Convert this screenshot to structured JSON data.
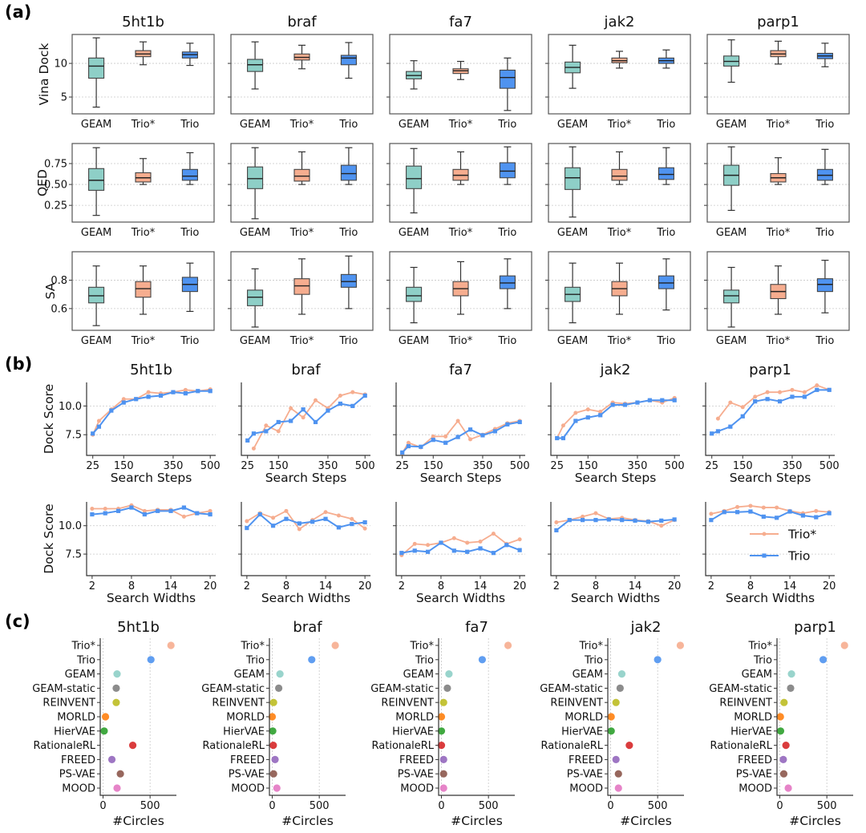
{
  "section_labels": [
    "(a)",
    "(b)",
    "(c)"
  ],
  "targets": [
    "5ht1b",
    "braf",
    "fa7",
    "jak2",
    "parp1"
  ],
  "colors": {
    "GEAM": "#8ecfc7",
    "Trio*": "#f6ad8f",
    "Trio": "#4f93f0",
    "edge": "#333333"
  },
  "chart_data": [
    {
      "section": "(a)",
      "type": "box",
      "methods": [
        "GEAM",
        "Trio*",
        "Trio"
      ],
      "box_format": "[min, q1, median, q3, max]",
      "metrics": [
        {
          "ylabel": "Vina Dock",
          "yticks": [
            5,
            10
          ],
          "tick_labels": [
            "5",
            "10"
          ],
          "ylim": [
            2.5,
            14.3
          ],
          "data": {
            "5ht1b": [
              [
                3.5,
                7.8,
                9.6,
                10.8,
                13.8
              ],
              [
                9.8,
                11.0,
                11.4,
                11.9,
                13.2
              ],
              [
                9.7,
                10.8,
                11.3,
                11.7,
                13.0
              ]
            ],
            "braf": [
              [
                6.2,
                8.8,
                9.8,
                10.6,
                13.2
              ],
              [
                9.2,
                10.5,
                10.9,
                11.4,
                12.7
              ],
              [
                7.8,
                9.8,
                10.8,
                11.2,
                13.1
              ]
            ],
            "fa7": [
              [
                6.2,
                7.7,
                8.2,
                8.8,
                10.4
              ],
              [
                7.6,
                8.5,
                8.9,
                9.2,
                10.3
              ],
              [
                3.0,
                6.3,
                7.9,
                9.0,
                10.8
              ]
            ],
            "jak2": [
              [
                6.3,
                8.6,
                9.4,
                10.2,
                12.7
              ],
              [
                9.3,
                10.1,
                10.4,
                10.8,
                11.8
              ],
              [
                9.3,
                10.0,
                10.4,
                10.8,
                12.0
              ]
            ],
            "parp1": [
              [
                7.2,
                9.6,
                10.3,
                11.1,
                13.5
              ],
              [
                9.9,
                11.0,
                11.4,
                11.9,
                13.3
              ],
              [
                9.5,
                10.7,
                11.1,
                11.5,
                13.0
              ]
            ]
          }
        },
        {
          "ylabel": "QED",
          "yticks": [
            0.25,
            0.5,
            0.75
          ],
          "tick_labels": [
            "0.25",
            "0.50",
            "0.75"
          ],
          "ylim": [
            0.05,
            0.99
          ],
          "data": {
            "5ht1b": [
              [
                0.13,
                0.43,
                0.55,
                0.69,
                0.94
              ],
              [
                0.5,
                0.53,
                0.58,
                0.64,
                0.81
              ],
              [
                0.5,
                0.55,
                0.6,
                0.68,
                0.88
              ]
            ],
            "braf": [
              [
                0.09,
                0.45,
                0.57,
                0.71,
                0.94
              ],
              [
                0.5,
                0.54,
                0.6,
                0.68,
                0.89
              ],
              [
                0.5,
                0.55,
                0.63,
                0.73,
                0.94
              ]
            ],
            "fa7": [
              [
                0.16,
                0.45,
                0.57,
                0.72,
                0.93
              ],
              [
                0.5,
                0.55,
                0.61,
                0.68,
                0.89
              ],
              [
                0.5,
                0.58,
                0.66,
                0.76,
                0.95
              ]
            ],
            "jak2": [
              [
                0.11,
                0.44,
                0.58,
                0.7,
                0.95
              ],
              [
                0.5,
                0.55,
                0.6,
                0.68,
                0.89
              ],
              [
                0.5,
                0.56,
                0.62,
                0.7,
                0.94
              ]
            ],
            "parp1": [
              [
                0.19,
                0.49,
                0.61,
                0.73,
                0.95
              ],
              [
                0.5,
                0.53,
                0.58,
                0.63,
                0.82
              ],
              [
                0.5,
                0.55,
                0.61,
                0.68,
                0.92
              ]
            ]
          }
        },
        {
          "ylabel": "SA",
          "yticks": [
            0.6,
            0.8
          ],
          "tick_labels": [
            "0.6",
            "0.8"
          ],
          "ylim": [
            0.447,
            1.0
          ],
          "data": {
            "5ht1b": [
              [
                0.48,
                0.64,
                0.69,
                0.75,
                0.9
              ],
              [
                0.56,
                0.68,
                0.74,
                0.79,
                0.9
              ],
              [
                0.58,
                0.72,
                0.77,
                0.82,
                0.92
              ]
            ],
            "braf": [
              [
                0.47,
                0.62,
                0.68,
                0.73,
                0.88
              ],
              [
                0.56,
                0.7,
                0.76,
                0.81,
                0.95
              ],
              [
                0.6,
                0.75,
                0.79,
                0.84,
                0.97
              ]
            ],
            "fa7": [
              [
                0.5,
                0.65,
                0.69,
                0.75,
                0.89
              ],
              [
                0.56,
                0.69,
                0.74,
                0.79,
                0.93
              ],
              [
                0.6,
                0.74,
                0.78,
                0.83,
                0.95
              ]
            ],
            "jak2": [
              [
                0.5,
                0.65,
                0.7,
                0.75,
                0.92
              ],
              [
                0.56,
                0.69,
                0.74,
                0.79,
                0.92
              ],
              [
                0.59,
                0.74,
                0.78,
                0.83,
                0.95
              ]
            ],
            "parp1": [
              [
                0.47,
                0.64,
                0.69,
                0.73,
                0.89
              ],
              [
                0.56,
                0.67,
                0.72,
                0.77,
                0.9
              ],
              [
                0.57,
                0.72,
                0.77,
                0.81,
                0.94
              ]
            ]
          }
        }
      ]
    },
    {
      "section": "(b)",
      "type": "line",
      "ylabel": "Dock Score",
      "yticks": [
        7.5,
        10.0
      ],
      "tick_labels": [
        "7.5",
        "10.0"
      ],
      "legend": {
        "entries": [
          "Trio*",
          "Trio"
        ],
        "placement": "lower-right of parp1 Search Widths panel"
      },
      "rows": [
        {
          "xlabel": "Search Steps",
          "x": [
            25,
            50,
            100,
            150,
            200,
            250,
            300,
            350,
            400,
            450,
            500
          ],
          "xticks": [
            25,
            150,
            350,
            500
          ],
          "xtick_labels": [
            "25",
            "150",
            "350",
            "500"
          ],
          "xlim": [
            0,
            522
          ],
          "ylim": [
            5.7,
            12.05
          ],
          "series": {
            "5ht1b": {
              "Trio*": [
                7.5,
                8.7,
                9.7,
                10.6,
                10.6,
                11.2,
                11.1,
                11.2,
                11.4,
                11.3,
                11.45
              ],
              "Trio": [
                7.6,
                8.2,
                9.6,
                10.3,
                10.6,
                10.8,
                10.9,
                11.2,
                11.1,
                11.3,
                11.3
              ]
            },
            "braf": {
              "Trio*": [
                null,
                6.3,
                8.3,
                7.8,
                9.8,
                9.0,
                10.5,
                9.8,
                10.9,
                11.2,
                11.0
              ],
              "Trio": [
                7.0,
                7.6,
                7.8,
                8.6,
                8.7,
                9.7,
                8.6,
                9.6,
                10.2,
                10.0,
                10.9
              ]
            },
            "fa7": {
              "Trio*": [
                5.9,
                6.8,
                6.4,
                7.35,
                7.35,
                8.7,
                7.1,
                7.5,
                8.0,
                8.5,
                8.7
              ],
              "Trio": [
                5.95,
                6.5,
                6.45,
                7.05,
                6.8,
                7.3,
                7.95,
                7.45,
                7.8,
                8.4,
                8.6
              ]
            },
            "jak2": {
              "Trio*": [
                7.2,
                8.3,
                9.4,
                9.7,
                9.5,
                10.3,
                10.2,
                10.3,
                10.5,
                10.3,
                10.7
              ],
              "Trio": [
                7.2,
                7.2,
                8.7,
                9.0,
                9.2,
                10.1,
                10.1,
                10.3,
                10.5,
                10.5,
                10.5
              ]
            },
            "parp1": {
              "Trio*": [
                null,
                8.9,
                10.3,
                9.9,
                10.8,
                11.2,
                11.2,
                11.4,
                11.2,
                11.8,
                11.4
              ],
              "Trio": [
                7.6,
                7.8,
                8.2,
                9.1,
                10.4,
                10.6,
                10.4,
                10.8,
                10.8,
                11.4,
                11.4
              ]
            }
          }
        },
        {
          "xlabel": "Search Widths",
          "x": [
            2,
            4,
            6,
            8,
            10,
            12,
            14,
            16,
            18,
            20
          ],
          "xticks": [
            2,
            8,
            14,
            20
          ],
          "xtick_labels": [
            "2",
            "8",
            "14",
            "20"
          ],
          "xlim": [
            1.16,
            20.84
          ],
          "ylim": [
            5.6,
            12.1
          ],
          "series": {
            "5ht1b": {
              "Trio*": [
                11.5,
                11.5,
                11.5,
                11.8,
                11.3,
                11.4,
                11.4,
                10.8,
                11.1,
                11.3
              ],
              "Trio": [
                11.0,
                11.1,
                11.3,
                11.6,
                11.0,
                11.3,
                11.3,
                11.6,
                11.1,
                11.0
              ]
            },
            "braf": {
              "Trio*": [
                10.4,
                11.1,
                10.7,
                11.3,
                9.7,
                10.5,
                11.2,
                10.9,
                10.6,
                9.75
              ],
              "Trio": [
                9.8,
                11.0,
                10.0,
                10.6,
                10.2,
                10.35,
                10.6,
                9.85,
                10.15,
                10.3
              ]
            },
            "fa7": {
              "Trio*": [
                7.4,
                8.4,
                8.3,
                8.5,
                8.9,
                8.5,
                8.6,
                9.3,
                8.4,
                8.8
              ],
              "Trio": [
                7.6,
                7.8,
                7.7,
                8.5,
                7.8,
                7.7,
                8.0,
                7.6,
                8.3,
                7.85
              ]
            },
            "jak2": {
              "Trio*": [
                10.3,
                10.5,
                10.8,
                11.1,
                10.6,
                10.7,
                10.5,
                10.4,
                10.0,
                10.5
              ],
              "Trio": [
                9.6,
                10.5,
                10.5,
                10.5,
                10.55,
                10.5,
                10.45,
                10.35,
                10.45,
                10.55
              ]
            },
            "parp1": {
              "Trio*": [
                11.05,
                11.3,
                11.65,
                11.75,
                11.6,
                11.6,
                11.3,
                11.1,
                11.3,
                11.2
              ],
              "Trio": [
                10.5,
                11.2,
                11.2,
                11.25,
                10.8,
                10.7,
                11.25,
                10.9,
                10.75,
                11.1
              ]
            }
          }
        }
      ]
    },
    {
      "section": "(c)",
      "type": "scatter",
      "xlabel": "#Circles",
      "xticks": [
        0,
        500
      ],
      "xtick_labels": [
        "0",
        "500"
      ],
      "xlim": [
        -30,
        780
      ],
      "methods": [
        "Trio*",
        "Trio",
        "GEAM",
        "GEAM-static",
        "REINVENT",
        "MORLD",
        "HierVAE",
        "RationaleRL",
        "FREED",
        "PS-VAE",
        "MOOD"
      ],
      "method_colors": [
        "#f6ad8f",
        "#4f93f0",
        "#8ecfc7",
        "#7f7f7f",
        "#bcbd22",
        "#ff7f0e",
        "#2ca02c",
        "#d62728",
        "#9467bd",
        "#8c564b",
        "#e377c2"
      ],
      "values": {
        "5ht1b": [
          722,
          509,
          149,
          140,
          140,
          26,
          12,
          316,
          94,
          184,
          149
        ],
        "braf": [
          670,
          420,
          82,
          69,
          14,
          0,
          5,
          11,
          30,
          14,
          49
        ],
        "fa7": [
          708,
          434,
          80,
          63,
          23,
          0,
          0,
          0,
          23,
          23,
          23
        ],
        "jak2": [
          741,
          500,
          119,
          101,
          57,
          6,
          6,
          199,
          57,
          83,
          83
        ],
        "parp1": [
          688,
          461,
          124,
          115,
          45,
          6,
          8,
          65,
          37,
          42,
          90
        ]
      }
    }
  ]
}
